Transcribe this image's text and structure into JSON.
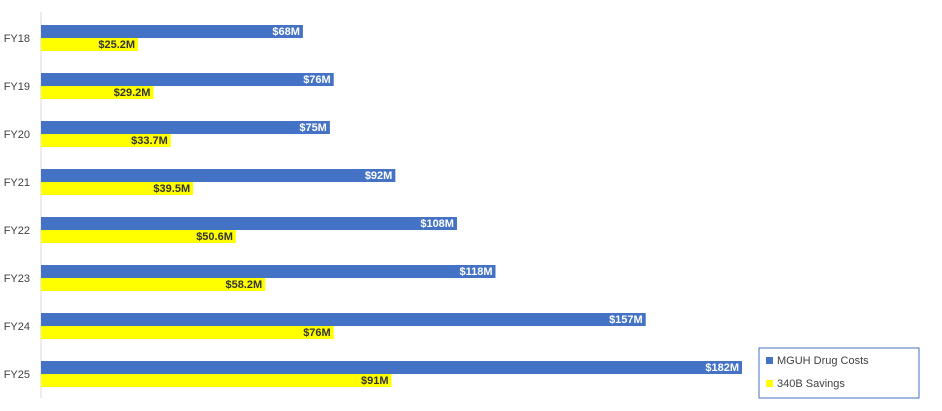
{
  "chart_data": {
    "type": "bar",
    "orientation": "horizontal",
    "categories": [
      "FY18",
      "FY19",
      "FY20",
      "FY21",
      "FY22",
      "FY23",
      "FY24",
      "FY25"
    ],
    "series": [
      {
        "name": "MGUH Drug Costs",
        "color": "#4472c4",
        "label_color": "#ffffff",
        "values": [
          68,
          76,
          75,
          92,
          108,
          118,
          157,
          182
        ],
        "labels": [
          "$68M",
          "$76M",
          "$75M",
          "$92M",
          "$108M",
          "$118M",
          "$157M",
          "$182M"
        ]
      },
      {
        "name": "340B Savings",
        "color": "#ffff00",
        "label_color": "#333333",
        "values": [
          25.2,
          29.2,
          33.7,
          39.5,
          50.6,
          58.2,
          76,
          91
        ],
        "labels": [
          "$25.2M",
          "$29.2M",
          "$33.7M",
          "$39.5M",
          "$50.6M",
          "$58.2M",
          "$76M",
          "$91M"
        ]
      }
    ],
    "title": "",
    "xlabel": "",
    "ylabel": "",
    "xlim": [
      0,
      182
    ],
    "grid": false,
    "legend_position": "bottom-right",
    "x_axis_visible": false
  }
}
